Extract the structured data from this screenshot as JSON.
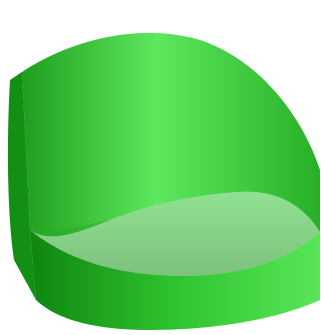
{
  "figure": {
    "surface_color_light": "#7df27d",
    "surface_color_mid": "#33cc33",
    "surface_color_dark": "#0b7a0b",
    "mesh_color": "#0a3d0a",
    "noisy_curve_color": "#ff1a1a",
    "smooth_curve_color": "#1f6fff"
  }
}
